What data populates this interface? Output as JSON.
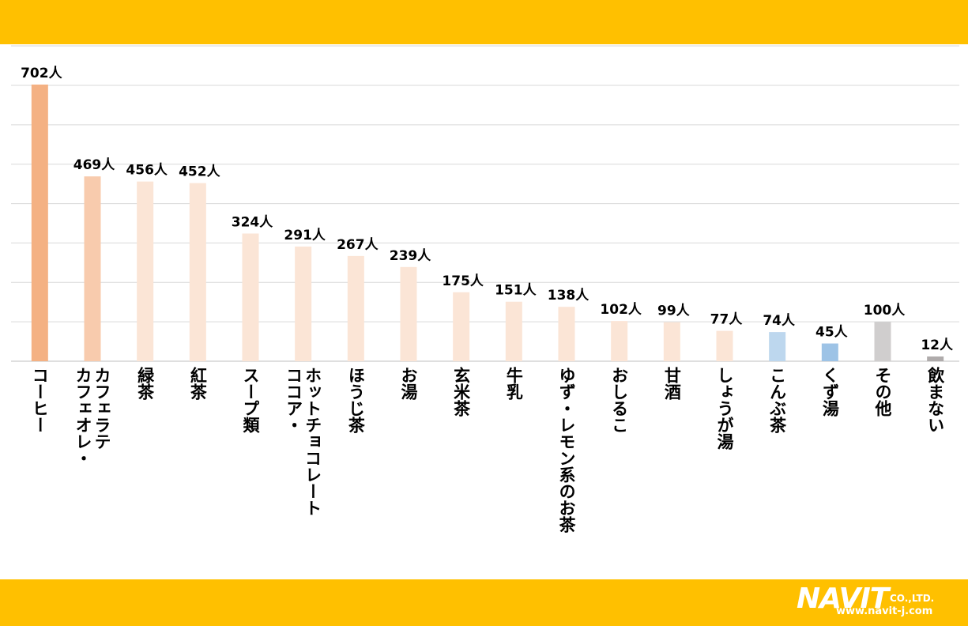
{
  "chart_data": {
    "type": "bar",
    "categories": [
      "コーヒー",
      "カフェオレ・カフェラテ",
      "緑茶",
      "紅茶",
      "スープ類",
      "ココア・ホットチョコレート",
      "ほうじ茶",
      "お湯",
      "玄米茶",
      "牛乳",
      "ゆず・レモン系のお茶",
      "おしるこ",
      "甘酒",
      "しょうが湯",
      "こんぶ茶",
      "くず湯",
      "その他",
      "飲まない"
    ],
    "category_lines": [
      [
        "コーヒー"
      ],
      [
        "カフェオレ・",
        "カフェラテ"
      ],
      [
        "緑茶"
      ],
      [
        "紅茶"
      ],
      [
        "スープ類"
      ],
      [
        "ココア・",
        "ホットチョコレート"
      ],
      [
        "ほうじ茶"
      ],
      [
        "お湯"
      ],
      [
        "玄米茶"
      ],
      [
        "牛乳"
      ],
      [
        "ゆず・レモン系のお茶"
      ],
      [
        "おしるこ"
      ],
      [
        "甘酒"
      ],
      [
        "しょうが湯"
      ],
      [
        "こんぶ茶"
      ],
      [
        "くず湯"
      ],
      [
        "その他"
      ],
      [
        "飲まない"
      ]
    ],
    "values": [
      702,
      469,
      456,
      452,
      324,
      291,
      267,
      239,
      175,
      151,
      138,
      102,
      99,
      77,
      74,
      45,
      100,
      12
    ],
    "unit": "人",
    "colors": [
      "#F4B183",
      "#F8CBAD",
      "#FBE5D6",
      "#FBE5D6",
      "#FBE5D6",
      "#FBE5D6",
      "#FBE5D6",
      "#FBE5D6",
      "#FBE5D6",
      "#FBE5D6",
      "#FBE5D6",
      "#FBE5D6",
      "#FBE5D6",
      "#FBE5D6",
      "#BDD7EE",
      "#9DC3E6",
      "#D0CECE",
      "#AFABAB"
    ],
    "ylim": [
      0,
      700
    ],
    "grid": true,
    "title": "",
    "xlabel": "",
    "ylabel": ""
  },
  "logo": {
    "main": "NAVIT",
    "company": "CO.,LTD.",
    "url": "www.navit-j.com"
  }
}
